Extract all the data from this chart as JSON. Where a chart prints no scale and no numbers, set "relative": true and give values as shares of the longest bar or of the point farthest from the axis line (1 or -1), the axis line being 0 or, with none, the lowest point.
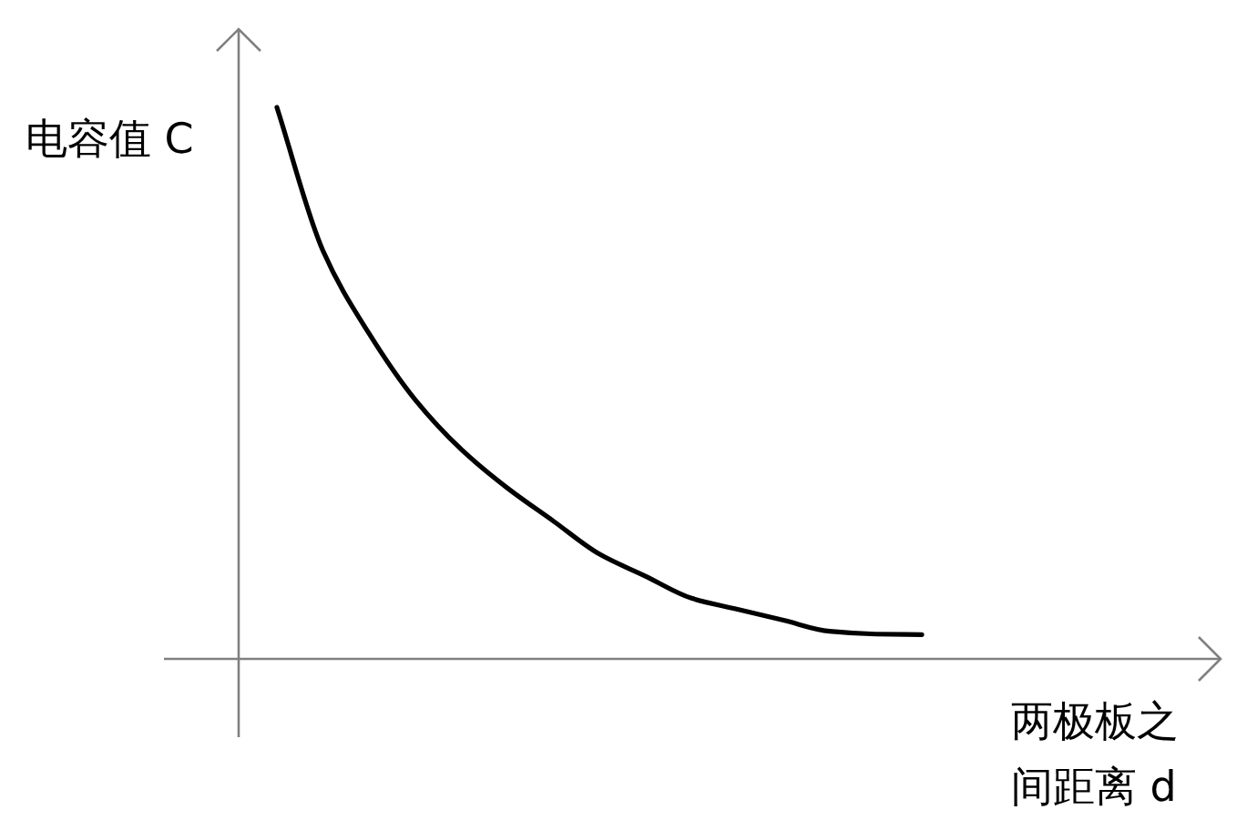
{
  "chart_data": {
    "type": "line",
    "relative": true,
    "xlabel": "两极板之间距离 d",
    "ylabel": "电容值 C",
    "categories": [
      null,
      null,
      null,
      null,
      null,
      null,
      null,
      null,
      null,
      null,
      null,
      null,
      null,
      null,
      null
    ],
    "values": [
      1.0,
      0.74,
      0.59,
      0.47,
      0.38,
      0.31,
      0.25,
      0.19,
      0.15,
      0.11,
      0.09,
      0.07,
      0.05,
      0.045,
      0.044
    ],
    "color": "#000000"
  }
}
